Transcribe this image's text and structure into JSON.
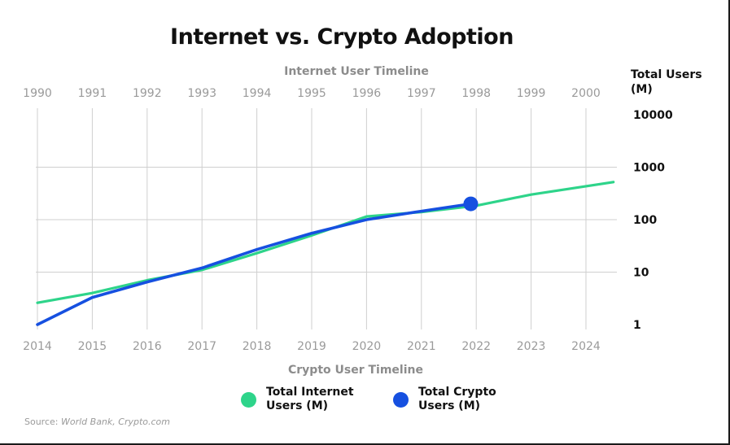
{
  "title": "Internet vs. Crypto Adoption",
  "source_prefix": "Source: ",
  "source_text": "World Bank, Crypto.com",
  "legend": [
    {
      "label": "Total Internet Users (M)",
      "color": "#2ed48a"
    },
    {
      "label": "Total Crypto Users (M)",
      "color": "#1650e0"
    }
  ],
  "chart_data": {
    "type": "line",
    "title": "Internet vs. Crypto Adoption",
    "top_axis_label": "Internet User Timeline",
    "bottom_axis_label": "Crypto User Timeline",
    "ylabel": "Total Users (M)",
    "y_scale": "log",
    "ylim": [
      1,
      10000
    ],
    "y_ticks": [
      "10000",
      "1000",
      "100",
      "10",
      "1"
    ],
    "top_ticks": [
      "1990",
      "1991",
      "1992",
      "1993",
      "1994",
      "1995",
      "1996",
      "1997",
      "1998",
      "1999",
      "2000"
    ],
    "bottom_ticks": [
      "2014",
      "2015",
      "2016",
      "2017",
      "2018",
      "2019",
      "2020",
      "2021",
      "2022",
      "2023",
      "2024"
    ],
    "grid": true,
    "series": [
      {
        "name": "Total Internet Users (M)",
        "axis": "top",
        "color": "#2ed48a",
        "x": [
          1990,
          1991,
          1992,
          1993,
          1994,
          1995,
          1996,
          1997,
          1998,
          1999,
          2000.5
        ],
        "y": [
          2.6,
          4,
          7,
          11,
          23,
          50,
          115,
          140,
          185,
          300,
          520
        ]
      },
      {
        "name": "Total Crypto Users (M)",
        "axis": "bottom",
        "color": "#1650e0",
        "x": [
          2014,
          2015,
          2016,
          2017,
          2018,
          2019,
          2020,
          2021,
          2021.9
        ],
        "y": [
          1,
          3.3,
          6.5,
          12,
          27,
          55,
          100,
          145,
          200
        ]
      }
    ]
  }
}
